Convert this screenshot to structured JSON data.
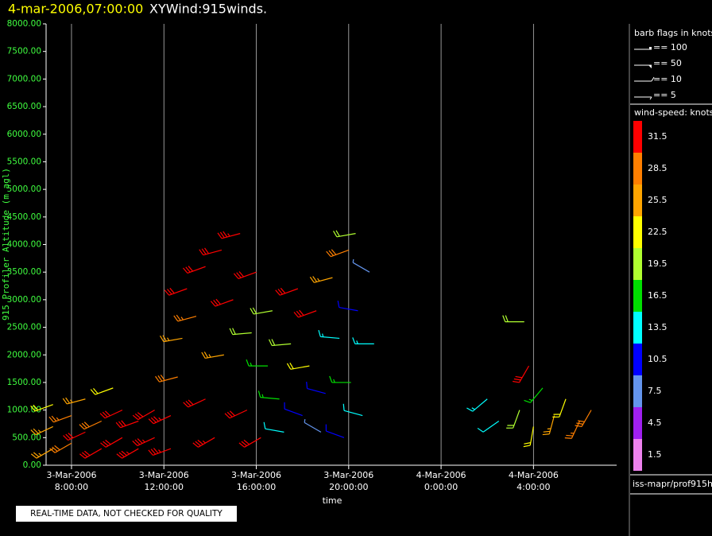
{
  "chart_data": {
    "type": "wind_barb",
    "title_time": "4-mar-2006,07:00:00",
    "title": "XYWind:915winds.",
    "y_label": "915 Profiler Altitude (m agl)",
    "x_label": "time",
    "footer": "REAL-TIME DATA, NOT CHECKED FOR QUALITY",
    "source": "iss-mapr/prof915h",
    "xlim": [
      6.9,
      31.6
    ],
    "xticks": [
      {
        "value": 8,
        "date": "3-Mar-2006",
        "label": "8:00:00"
      },
      {
        "value": 12,
        "date": "3-Mar-2006",
        "label": "12:00:00"
      },
      {
        "value": 16,
        "date": "3-Mar-2006",
        "label": "16:00:00"
      },
      {
        "value": 20,
        "date": "3-Mar-2006",
        "label": "20:00:00"
      },
      {
        "value": 24,
        "date": "4-Mar-2006",
        "label": "0:00:00"
      },
      {
        "value": 28,
        "date": "4-Mar-2006",
        "label": "4:00:00"
      }
    ],
    "ylim": [
      0,
      8000
    ],
    "yticks": [
      {
        "value": 0,
        "label": "0.00"
      },
      {
        "value": 500,
        "label": "500.00"
      },
      {
        "value": 1000,
        "label": "1000.00"
      },
      {
        "value": 1500,
        "label": "1500.00"
      },
      {
        "value": 2000,
        "label": "2000.00"
      },
      {
        "value": 2500,
        "label": "2500.00"
      },
      {
        "value": 3000,
        "label": "3000.00"
      },
      {
        "value": 3500,
        "label": "3500.00"
      },
      {
        "value": 4000,
        "label": "4000.00"
      },
      {
        "value": 4500,
        "label": "4500.00"
      },
      {
        "value": 5000,
        "label": "5000.00"
      },
      {
        "value": 5500,
        "label": "5500.00"
      },
      {
        "value": 6000,
        "label": "6000.00"
      },
      {
        "value": 6500,
        "label": "6500.00"
      },
      {
        "value": 7000,
        "label": "7000.00"
      },
      {
        "value": 7500,
        "label": "7500.00"
      },
      {
        "value": 8000,
        "label": "8000.00"
      }
    ],
    "grid": true,
    "barb_legend": {
      "title": "barb flags in knots",
      "entries": [
        "== 100",
        "== 50",
        "== 10",
        "== 5"
      ]
    },
    "colorbar": {
      "title": "wind-speed: knots",
      "levels": [
        31.5,
        28.5,
        25.5,
        22.5,
        19.5,
        16.5,
        13.5,
        10.5,
        7.5,
        4.5,
        1.5
      ],
      "colors": [
        "#ff0000",
        "#ff7f00",
        "#ffa500",
        "#ffff00",
        "#b0ff30",
        "#00e000",
        "#00ffff",
        "#0000ff",
        "#6495ed",
        "#a020f0",
        "#ee82ee"
      ]
    },
    "x": [
      7.2,
      7.2,
      7.2,
      8.0,
      8.0,
      8.6,
      8.6,
      9.3,
      9.3,
      9.8,
      10.2,
      10.2,
      10.9,
      10.9,
      11.6,
      11.6,
      12.3,
      12.3,
      12.6,
      12.8,
      13.0,
      13.4,
      13.8,
      13.8,
      14.2,
      14.5,
      14.6,
      15.0,
      15.3,
      15.6,
      15.8,
      16.0,
      16.2,
      16.5,
      16.7,
      17.0,
      17.2,
      17.5,
      17.8,
      18.0,
      18.3,
      18.6,
      18.8,
      19.0,
      19.3,
      19.6,
      19.8,
      20.0,
      20.1,
      20.4,
      20.6,
      20.9,
      21.1,
      20.3,
      26.0,
      26.5,
      27.6,
      27.4,
      27.8,
      28.0,
      28.4,
      28.9,
      29.4,
      30.0,
      30.5
    ],
    "altitude": [
      300,
      700,
      1100,
      400,
      900,
      600,
      1200,
      300,
      800,
      1400,
      500,
      1000,
      300,
      800,
      500,
      1000,
      300,
      900,
      1600,
      2300,
      3200,
      2700,
      3600,
      1200,
      500,
      3900,
      2000,
      3000,
      4200,
      1000,
      2400,
      3500,
      500,
      1800,
      2800,
      1200,
      600,
      2200,
      3200,
      900,
      1800,
      2800,
      600,
      1300,
      3400,
      2300,
      500,
      3900,
      1500,
      2800,
      900,
      3500,
      2200,
      4200,
      1200,
      800,
      2600,
      1000,
      1800,
      700,
      1400,
      900,
      1200,
      800,
      1000
    ],
    "speed": [
      24,
      26,
      22,
      28,
      27,
      31,
      25,
      30,
      29,
      22,
      32,
      31,
      33,
      32,
      33,
      32,
      34,
      33,
      28,
      24,
      30,
      27,
      32,
      31,
      33,
      31,
      26,
      32,
      33,
      32,
      20,
      30,
      31,
      17,
      20,
      15,
      12,
      18,
      31,
      9,
      22,
      30,
      7,
      11,
      24,
      13,
      9,
      28,
      16,
      10,
      12,
      6,
      14,
      20,
      14,
      12,
      18,
      20,
      31,
      21,
      15,
      24,
      22,
      27,
      29
    ],
    "direction": [
      240,
      245,
      250,
      240,
      250,
      245,
      255,
      240,
      245,
      250,
      240,
      245,
      240,
      250,
      245,
      240,
      250,
      245,
      255,
      260,
      250,
      255,
      250,
      245,
      240,
      255,
      260,
      250,
      255,
      245,
      265,
      250,
      240,
      270,
      260,
      275,
      280,
      265,
      250,
      290,
      260,
      250,
      300,
      285,
      255,
      275,
      290,
      250,
      270,
      280,
      285,
      300,
      270,
      260,
      230,
      235,
      270,
      200,
      210,
      190,
      220,
      195,
      200,
      205,
      210
    ]
  }
}
